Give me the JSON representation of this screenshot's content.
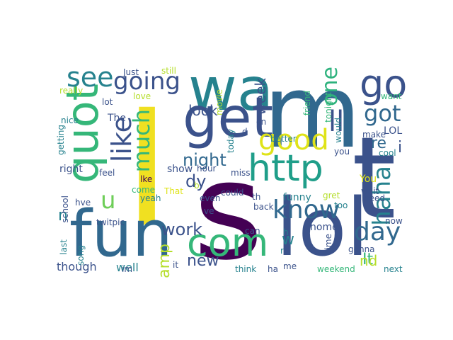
{
  "word_cloud": {
    "words": [
      {
        "text": "I",
        "color": "#f0e021"
      },
      {
        "text": "s",
        "color": "#440154"
      },
      {
        "text": "m",
        "color": "#31688e"
      },
      {
        "text": "lol",
        "color": "#3b528b"
      },
      {
        "text": "wa",
        "color": "#26828e"
      },
      {
        "text": "quot",
        "color": "#35b779"
      },
      {
        "text": "fun",
        "color": "#31688e"
      },
      {
        "text": "get",
        "color": "#3b528b"
      },
      {
        "text": "t",
        "color": "#3b528b"
      },
      {
        "text": "http",
        "color": "#1f9e89"
      },
      {
        "text": "go",
        "color": "#3b528b"
      },
      {
        "text": "com",
        "color": "#35b779"
      },
      {
        "text": "see",
        "color": "#26828e"
      },
      {
        "text": "going",
        "color": "#3b528b"
      },
      {
        "text": "good",
        "color": "#dfe318"
      },
      {
        "text": "like",
        "color": "#3b528b"
      },
      {
        "text": "much",
        "color": "#35b779"
      },
      {
        "text": "know",
        "color": "#31688e"
      },
      {
        "text": "day",
        "color": "#31688e"
      },
      {
        "text": "haha",
        "color": "#26828e"
      },
      {
        "text": "one",
        "color": "#2db27d"
      },
      {
        "text": "got",
        "color": "#31688e"
      },
      {
        "text": "ll",
        "color": "#3b528b"
      },
      {
        "text": "u",
        "color": "#6ece58"
      },
      {
        "text": "night",
        "color": "#31688e"
      },
      {
        "text": "work",
        "color": "#3b528b"
      },
      {
        "text": "amp",
        "color": "#b5de2b"
      },
      {
        "text": "new",
        "color": "#3b528b"
      },
      {
        "text": "look",
        "color": "#3b528b"
      },
      {
        "text": "week",
        "color": "#3b528b"
      },
      {
        "text": "dy",
        "color": "#3b528b"
      },
      {
        "text": "re",
        "color": "#31688e"
      },
      {
        "text": "i",
        "color": "#3b528b"
      },
      {
        "text": "n",
        "color": "#26828e"
      },
      {
        "text": "It",
        "color": "#35b779"
      },
      {
        "text": "nd",
        "color": "#b5de2b"
      },
      {
        "text": "w",
        "color": "#26828e"
      },
      {
        "text": "though",
        "color": "#3b528b"
      },
      {
        "text": "well",
        "color": "#26828e"
      },
      {
        "text": "show",
        "color": "#3b528b"
      },
      {
        "text": "home",
        "color": "#3b528b"
      },
      {
        "text": "funny",
        "color": "#26828e"
      },
      {
        "text": "right",
        "color": "#3b528b"
      },
      {
        "text": "LOL",
        "color": "#3b528b"
      },
      {
        "text": "You",
        "color": "#dfe318"
      },
      {
        "text": "The",
        "color": "#3b528b"
      },
      {
        "text": "nice",
        "color": "#26828e"
      },
      {
        "text": "love",
        "color": "#b5de2b"
      },
      {
        "text": "really",
        "color": "#b5de2b"
      },
      {
        "text": "Just",
        "color": "#3b528b"
      },
      {
        "text": "still",
        "color": "#b5de2b"
      },
      {
        "text": "lot",
        "color": "#3b528b"
      },
      {
        "text": "feel",
        "color": "#3b528b"
      },
      {
        "text": "come",
        "color": "#35b779"
      },
      {
        "text": "yeah",
        "color": "#26828e"
      },
      {
        "text": "lke",
        "color": "#440154"
      },
      {
        "text": "That",
        "color": "#dfe318"
      },
      {
        "text": "miss",
        "color": "#3b528b"
      },
      {
        "text": "hour",
        "color": "#3b528b"
      },
      {
        "text": "movie",
        "color": "#b5de2b"
      },
      {
        "text": "today",
        "color": "#26828e"
      },
      {
        "text": "cn",
        "color": "#3b528b"
      },
      {
        "text": "d",
        "color": "#3b528b"
      },
      {
        "text": "friend",
        "color": "#35b779"
      },
      {
        "text": "tonight",
        "color": "#35b779"
      },
      {
        "text": "would",
        "color": "#26828e"
      },
      {
        "text": "want",
        "color": "#35b779"
      },
      {
        "text": "make",
        "color": "#3b528b"
      },
      {
        "text": "cool",
        "color": "#26828e"
      },
      {
        "text": "better",
        "color": "#26828e"
      },
      {
        "text": "you",
        "color": "#3b528b"
      },
      {
        "text": "could",
        "color": "#3b528b"
      },
      {
        "text": "th",
        "color": "#3b528b"
      },
      {
        "text": "gret",
        "color": "#b5de2b"
      },
      {
        "text": "need",
        "color": "#3b528b"
      },
      {
        "text": "wait",
        "color": "#3b528b"
      },
      {
        "text": "too",
        "color": "#26828e"
      },
      {
        "text": "even",
        "color": "#3b528b"
      },
      {
        "text": "back",
        "color": "#3b528b"
      },
      {
        "text": "ve",
        "color": "#3b528b"
      },
      {
        "text": "can",
        "color": "#3b528b"
      },
      {
        "text": "time",
        "color": "#3b528b"
      },
      {
        "text": "now",
        "color": "#3b528b"
      },
      {
        "text": "gonna",
        "color": "#3b528b"
      },
      {
        "text": "h",
        "color": "#26828e"
      },
      {
        "text": "r",
        "color": "#26828e"
      },
      {
        "text": "me",
        "color": "#3b528b"
      },
      {
        "text": "ha",
        "color": "#3b528b"
      },
      {
        "text": "think",
        "color": "#26828e"
      },
      {
        "text": "weekend",
        "color": "#35b779"
      },
      {
        "text": "next",
        "color": "#26828e"
      },
      {
        "text": "getting",
        "color": "#26828e"
      },
      {
        "text": "school",
        "color": "#3b528b"
      },
      {
        "text": "hve",
        "color": "#3b528b"
      },
      {
        "text": "twitpic",
        "color": "#3b528b"
      },
      {
        "text": "last",
        "color": "#26828e"
      },
      {
        "text": "song",
        "color": "#26828e"
      },
      {
        "text": "im",
        "color": "#3b528b"
      },
      {
        "text": "it",
        "color": "#3b528b"
      },
      {
        "text": "b",
        "color": "#b5de2b"
      }
    ]
  }
}
